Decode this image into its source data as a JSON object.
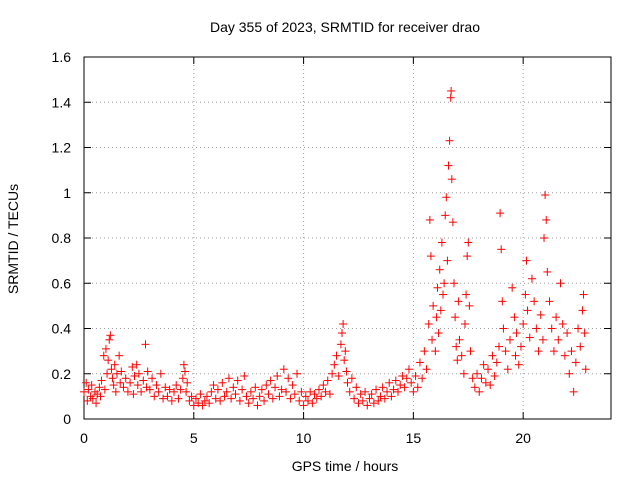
{
  "chart_data": {
    "type": "scatter",
    "title": "Day 355 of 2023, SRMTID for receiver drao",
    "xlabel": "GPS time / hours",
    "ylabel": "SRMTID / TECUs",
    "xlim": [
      0,
      24
    ],
    "ylim": [
      0,
      1.6
    ],
    "xticks": [
      0,
      5,
      10,
      15,
      20
    ],
    "yticks": [
      0,
      0.2,
      0.4,
      0.6,
      0.8,
      1,
      1.2,
      1.4,
      1.6
    ],
    "xtick_labels": [
      "0",
      "5",
      "10",
      "15",
      "20"
    ],
    "ytick_labels": [
      "0",
      "0.2",
      "0.4",
      "0.6",
      "0.8",
      "1",
      "1.2",
      "1.4",
      "1.6"
    ],
    "grid": true,
    "marker": "+",
    "series_color": "#ff0000",
    "series": [
      {
        "name": "SRMTID",
        "points": [
          [
            0.0,
            0.12
          ],
          [
            0.1,
            0.16
          ],
          [
            0.15,
            0.08
          ],
          [
            0.2,
            0.13
          ],
          [
            0.3,
            0.1
          ],
          [
            0.35,
            0.15
          ],
          [
            0.4,
            0.09
          ],
          [
            0.5,
            0.12
          ],
          [
            0.55,
            0.07
          ],
          [
            0.6,
            0.11
          ],
          [
            0.7,
            0.14
          ],
          [
            0.75,
            0.1
          ],
          [
            0.8,
            0.17
          ],
          [
            0.9,
            0.28
          ],
          [
            0.95,
            0.13
          ],
          [
            1.0,
            0.31
          ],
          [
            1.05,
            0.2
          ],
          [
            1.1,
            0.26
          ],
          [
            1.15,
            0.35
          ],
          [
            1.2,
            0.37
          ],
          [
            1.25,
            0.22
          ],
          [
            1.3,
            0.18
          ],
          [
            1.35,
            0.15
          ],
          [
            1.4,
            0.24
          ],
          [
            1.45,
            0.12
          ],
          [
            1.5,
            0.2
          ],
          [
            1.6,
            0.28
          ],
          [
            1.65,
            0.16
          ],
          [
            1.7,
            0.21
          ],
          [
            1.8,
            0.14
          ],
          [
            1.9,
            0.18
          ],
          [
            2.0,
            0.12
          ],
          [
            2.1,
            0.16
          ],
          [
            2.2,
            0.23
          ],
          [
            2.25,
            0.11
          ],
          [
            2.3,
            0.19
          ],
          [
            2.4,
            0.24
          ],
          [
            2.45,
            0.15
          ],
          [
            2.5,
            0.2
          ],
          [
            2.6,
            0.12
          ],
          [
            2.7,
            0.17
          ],
          [
            2.8,
            0.33
          ],
          [
            2.85,
            0.14
          ],
          [
            2.9,
            0.21
          ],
          [
            3.0,
            0.13
          ],
          [
            3.1,
            0.18
          ],
          [
            3.2,
            0.1
          ],
          [
            3.3,
            0.15
          ],
          [
            3.4,
            0.12
          ],
          [
            3.5,
            0.2
          ],
          [
            3.6,
            0.09
          ],
          [
            3.7,
            0.14
          ],
          [
            3.8,
            0.1
          ],
          [
            3.9,
            0.13
          ],
          [
            4.0,
            0.08
          ],
          [
            4.1,
            0.12
          ],
          [
            4.2,
            0.15
          ],
          [
            4.3,
            0.09
          ],
          [
            4.4,
            0.13
          ],
          [
            4.5,
            0.18
          ],
          [
            4.55,
            0.24
          ],
          [
            4.6,
            0.21
          ],
          [
            4.65,
            0.12
          ],
          [
            4.7,
            0.16
          ],
          [
            4.8,
            0.08
          ],
          [
            4.9,
            0.1
          ],
          [
            5.0,
            0.06
          ],
          [
            5.1,
            0.09
          ],
          [
            5.2,
            0.07
          ],
          [
            5.3,
            0.11
          ],
          [
            5.4,
            0.06
          ],
          [
            5.5,
            0.08
          ],
          [
            5.6,
            0.1
          ],
          [
            5.7,
            0.07
          ],
          [
            5.8,
            0.12
          ],
          [
            5.9,
            0.15
          ],
          [
            6.0,
            0.09
          ],
          [
            6.1,
            0.13
          ],
          [
            6.2,
            0.08
          ],
          [
            6.3,
            0.16
          ],
          [
            6.4,
            0.1
          ],
          [
            6.5,
            0.12
          ],
          [
            6.6,
            0.18
          ],
          [
            6.7,
            0.09
          ],
          [
            6.8,
            0.14
          ],
          [
            6.9,
            0.11
          ],
          [
            7.0,
            0.17
          ],
          [
            7.1,
            0.08
          ],
          [
            7.2,
            0.13
          ],
          [
            7.3,
            0.19
          ],
          [
            7.4,
            0.1
          ],
          [
            7.5,
            0.07
          ],
          [
            7.6,
            0.12
          ],
          [
            7.7,
            0.09
          ],
          [
            7.8,
            0.14
          ],
          [
            7.9,
            0.06
          ],
          [
            8.0,
            0.1
          ],
          [
            8.1,
            0.13
          ],
          [
            8.2,
            0.08
          ],
          [
            8.3,
            0.15
          ],
          [
            8.4,
            0.11
          ],
          [
            8.5,
            0.17
          ],
          [
            8.6,
            0.09
          ],
          [
            8.7,
            0.14
          ],
          [
            8.8,
            0.19
          ],
          [
            8.9,
            0.1
          ],
          [
            9.0,
            0.13
          ],
          [
            9.1,
            0.22
          ],
          [
            9.2,
            0.12
          ],
          [
            9.3,
            0.18
          ],
          [
            9.4,
            0.09
          ],
          [
            9.5,
            0.15
          ],
          [
            9.6,
            0.11
          ],
          [
            9.7,
            0.2
          ],
          [
            9.8,
            0.08
          ],
          [
            9.9,
            0.12
          ],
          [
            10.0,
            0.06
          ],
          [
            10.1,
            0.1
          ],
          [
            10.2,
            0.08
          ],
          [
            10.3,
            0.12
          ],
          [
            10.4,
            0.07
          ],
          [
            10.5,
            0.11
          ],
          [
            10.6,
            0.09
          ],
          [
            10.7,
            0.13
          ],
          [
            10.8,
            0.1
          ],
          [
            10.9,
            0.15
          ],
          [
            11.0,
            0.12
          ],
          [
            11.1,
            0.17
          ],
          [
            11.2,
            0.11
          ],
          [
            11.3,
            0.2
          ],
          [
            11.4,
            0.24
          ],
          [
            11.5,
            0.28
          ],
          [
            11.6,
            0.19
          ],
          [
            11.7,
            0.33
          ],
          [
            11.75,
            0.38
          ],
          [
            11.8,
            0.42
          ],
          [
            11.85,
            0.26
          ],
          [
            11.9,
            0.3
          ],
          [
            11.95,
            0.21
          ],
          [
            12.0,
            0.16
          ],
          [
            12.1,
            0.12
          ],
          [
            12.2,
            0.18
          ],
          [
            12.3,
            0.09
          ],
          [
            12.4,
            0.14
          ],
          [
            12.5,
            0.07
          ],
          [
            12.6,
            0.11
          ],
          [
            12.7,
            0.08
          ],
          [
            12.8,
            0.12
          ],
          [
            12.9,
            0.06
          ],
          [
            13.0,
            0.09
          ],
          [
            13.1,
            0.11
          ],
          [
            13.2,
            0.07
          ],
          [
            13.3,
            0.13
          ],
          [
            13.4,
            0.08
          ],
          [
            13.5,
            0.1
          ],
          [
            13.6,
            0.14
          ],
          [
            13.7,
            0.09
          ],
          [
            13.8,
            0.12
          ],
          [
            13.9,
            0.16
          ],
          [
            14.0,
            0.1
          ],
          [
            14.1,
            0.13
          ],
          [
            14.2,
            0.17
          ],
          [
            14.3,
            0.12
          ],
          [
            14.4,
            0.15
          ],
          [
            14.5,
            0.19
          ],
          [
            14.6,
            0.14
          ],
          [
            14.7,
            0.18
          ],
          [
            14.8,
            0.22
          ],
          [
            14.9,
            0.16
          ],
          [
            15.0,
            0.12
          ],
          [
            15.1,
            0.19
          ],
          [
            15.2,
            0.14
          ],
          [
            15.3,
            0.25
          ],
          [
            15.4,
            0.18
          ],
          [
            15.5,
            0.3
          ],
          [
            15.6,
            0.22
          ],
          [
            15.7,
            0.42
          ],
          [
            15.75,
            0.88
          ],
          [
            15.8,
            0.72
          ],
          [
            15.85,
            0.35
          ],
          [
            15.9,
            0.5
          ],
          [
            16.0,
            0.3
          ],
          [
            16.05,
            0.45
          ],
          [
            16.1,
            0.58
          ],
          [
            16.15,
            0.38
          ],
          [
            16.2,
            0.66
          ],
          [
            16.25,
            0.48
          ],
          [
            16.3,
            0.78
          ],
          [
            16.35,
            0.55
          ],
          [
            16.4,
            0.6
          ],
          [
            16.45,
            0.9
          ],
          [
            16.5,
            0.98
          ],
          [
            16.55,
            0.7
          ],
          [
            16.6,
            1.12
          ],
          [
            16.65,
            1.23
          ],
          [
            16.7,
            1.42
          ],
          [
            16.72,
            1.45
          ],
          [
            16.75,
            1.06
          ],
          [
            16.8,
            0.87
          ],
          [
            16.85,
            0.6
          ],
          [
            16.9,
            0.45
          ],
          [
            16.95,
            0.32
          ],
          [
            17.0,
            0.26
          ],
          [
            17.05,
            0.52
          ],
          [
            17.1,
            0.35
          ],
          [
            17.2,
            0.28
          ],
          [
            17.3,
            0.2
          ],
          [
            17.35,
            0.42
          ],
          [
            17.4,
            0.55
          ],
          [
            17.45,
            0.72
          ],
          [
            17.5,
            0.78
          ],
          [
            17.55,
            0.5
          ],
          [
            17.6,
            0.3
          ],
          [
            17.7,
            0.18
          ],
          [
            17.8,
            0.14
          ],
          [
            17.9,
            0.2
          ],
          [
            18.0,
            0.12
          ],
          [
            18.1,
            0.18
          ],
          [
            18.2,
            0.24
          ],
          [
            18.3,
            0.16
          ],
          [
            18.4,
            0.22
          ],
          [
            18.5,
            0.15
          ],
          [
            18.6,
            0.28
          ],
          [
            18.7,
            0.19
          ],
          [
            18.8,
            0.25
          ],
          [
            18.9,
            0.32
          ],
          [
            18.95,
            0.91
          ],
          [
            19.0,
            0.75
          ],
          [
            19.05,
            0.52
          ],
          [
            19.1,
            0.4
          ],
          [
            19.2,
            0.3
          ],
          [
            19.3,
            0.22
          ],
          [
            19.4,
            0.35
          ],
          [
            19.5,
            0.58
          ],
          [
            19.6,
            0.45
          ],
          [
            19.65,
            0.28
          ],
          [
            19.7,
            0.38
          ],
          [
            19.8,
            0.24
          ],
          [
            19.9,
            0.32
          ],
          [
            20.0,
            0.42
          ],
          [
            20.1,
            0.55
          ],
          [
            20.15,
            0.7
          ],
          [
            20.2,
            0.48
          ],
          [
            20.3,
            0.36
          ],
          [
            20.4,
            0.62
          ],
          [
            20.5,
            0.52
          ],
          [
            20.6,
            0.4
          ],
          [
            20.7,
            0.3
          ],
          [
            20.8,
            0.46
          ],
          [
            20.9,
            0.35
          ],
          [
            20.95,
            0.8
          ],
          [
            21.0,
            0.99
          ],
          [
            21.05,
            0.88
          ],
          [
            21.1,
            0.65
          ],
          [
            21.2,
            0.52
          ],
          [
            21.3,
            0.4
          ],
          [
            21.4,
            0.3
          ],
          [
            21.5,
            0.45
          ],
          [
            21.6,
            0.35
          ],
          [
            21.7,
            0.6
          ],
          [
            21.8,
            0.42
          ],
          [
            21.9,
            0.28
          ],
          [
            22.0,
            0.38
          ],
          [
            22.1,
            0.2
          ],
          [
            22.2,
            0.3
          ],
          [
            22.3,
            0.12
          ],
          [
            22.4,
            0.25
          ],
          [
            22.5,
            0.4
          ],
          [
            22.6,
            0.32
          ],
          [
            22.7,
            0.48
          ],
          [
            22.75,
            0.55
          ],
          [
            22.8,
            0.38
          ],
          [
            22.85,
            0.22
          ]
        ]
      }
    ]
  }
}
